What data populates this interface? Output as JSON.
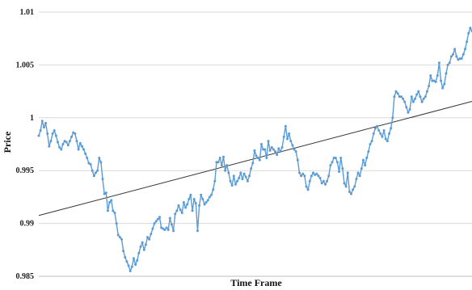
{
  "chart_data": {
    "type": "line",
    "xlabel": "Time Frame",
    "ylabel": "Price",
    "ylim": [
      0.985,
      1.01
    ],
    "y_ticks": [
      "0.985",
      "0.99",
      "0.995",
      "1",
      "1.005",
      "1.01"
    ],
    "y_tick_values": [
      0.985,
      0.99,
      0.995,
      1,
      1.005,
      1.01
    ],
    "xlim": [
      0,
      292
    ],
    "grid": "horizontal",
    "legend": "none",
    "series": [
      {
        "style": "line-with-markers",
        "color": "#5B9BD5",
        "values": [
          0.9983,
          0.9988,
          0.9997,
          0.9991,
          0.9995,
          0.9985,
          0.9973,
          0.9978,
          0.9985,
          0.9988,
          0.9983,
          0.9977,
          0.9972,
          0.997,
          0.9975,
          0.9978,
          0.9977,
          0.9974,
          0.9978,
          0.9982,
          0.9986,
          0.9985,
          0.9978,
          0.997,
          0.9976,
          0.9973,
          0.997,
          0.9966,
          0.9962,
          0.9957,
          0.9956,
          0.995,
          0.9945,
          0.9948,
          0.995,
          0.9962,
          0.9958,
          0.9942,
          0.9928,
          0.9929,
          0.9912,
          0.992,
          0.9922,
          0.9912,
          0.991,
          0.99,
          0.9889,
          0.9887,
          0.9885,
          0.9874,
          0.9868,
          0.9864,
          0.986,
          0.9855,
          0.9859,
          0.9867,
          0.9861,
          0.9865,
          0.9872,
          0.9878,
          0.9882,
          0.9875,
          0.988,
          0.9887,
          0.9885,
          0.989,
          0.9895,
          0.99,
          0.9902,
          0.9904,
          0.9906,
          0.9896,
          0.9895,
          0.9894,
          0.9896,
          0.9894,
          0.9905,
          0.9899,
          0.9893,
          0.9909,
          0.9912,
          0.9917,
          0.9913,
          0.991,
          0.992,
          0.9915,
          0.9918,
          0.9923,
          0.9927,
          0.9912,
          0.9923,
          0.9919,
          0.9893,
          0.9917,
          0.9927,
          0.9923,
          0.9918,
          0.992,
          0.9922,
          0.9925,
          0.9927,
          0.9932,
          0.994,
          0.9958,
          0.9958,
          0.9962,
          0.9955,
          0.9963,
          0.995,
          0.9955,
          0.9948,
          0.994,
          0.9936,
          0.9945,
          0.9937,
          0.994,
          0.9943,
          0.9948,
          0.9942,
          0.9947,
          0.9944,
          0.994,
          0.9945,
          0.9952,
          0.9957,
          0.9969,
          0.9964,
          0.9962,
          0.996,
          0.9975,
          0.997,
          0.997,
          0.9962,
          0.9978,
          0.9969,
          0.9972,
          0.997,
          0.9968,
          0.9965,
          0.9971,
          0.9968,
          0.9972,
          0.9982,
          0.9992,
          0.998,
          0.9985,
          0.9978,
          0.9974,
          0.997,
          0.9968,
          0.996,
          0.9948,
          0.9945,
          0.9947,
          0.9945,
          0.9935,
          0.9932,
          0.994,
          0.9945,
          0.9948,
          0.9946,
          0.9947,
          0.9945,
          0.9943,
          0.9938,
          0.994,
          0.9937,
          0.994,
          0.9945,
          0.9955,
          0.9958,
          0.9962,
          0.9962,
          0.9958,
          0.9949,
          0.9962,
          0.9952,
          0.9938,
          0.9935,
          0.9948,
          0.993,
          0.9928,
          0.9932,
          0.9935,
          0.9942,
          0.9948,
          0.9945,
          0.9952,
          0.996,
          0.9955,
          0.9962,
          0.9968,
          0.9975,
          0.9978,
          0.9985,
          0.999,
          0.9992,
          0.9988,
          0.9985,
          0.9982,
          0.9988,
          0.998,
          0.9978,
          0.9985,
          0.999,
          1.0,
          1.002,
          1.0025,
          1.0023,
          1.002,
          1.002,
          1.0018,
          1.0015,
          1.001,
          1.0005,
          1.0008,
          1.002,
          1.0015,
          1.0018,
          1.0022,
          1.0025,
          1.002,
          1.0015,
          1.0018,
          1.002,
          1.0025,
          1.003,
          1.004,
          1.0035,
          1.0035,
          1.0034,
          1.004,
          1.0052,
          1.0035,
          1.0028,
          1.0032,
          1.0042,
          1.005,
          1.0052,
          1.0058,
          1.006,
          1.0065,
          1.0058,
          1.0055,
          1.0056,
          1.0056,
          1.006,
          1.0065,
          1.0072,
          1.008,
          1.0085,
          1.0082
        ]
      },
      {
        "style": "trendline",
        "color": "#333333",
        "start": [
          0,
          0.99075
        ],
        "end": [
          292,
          1.00155
        ]
      }
    ]
  }
}
